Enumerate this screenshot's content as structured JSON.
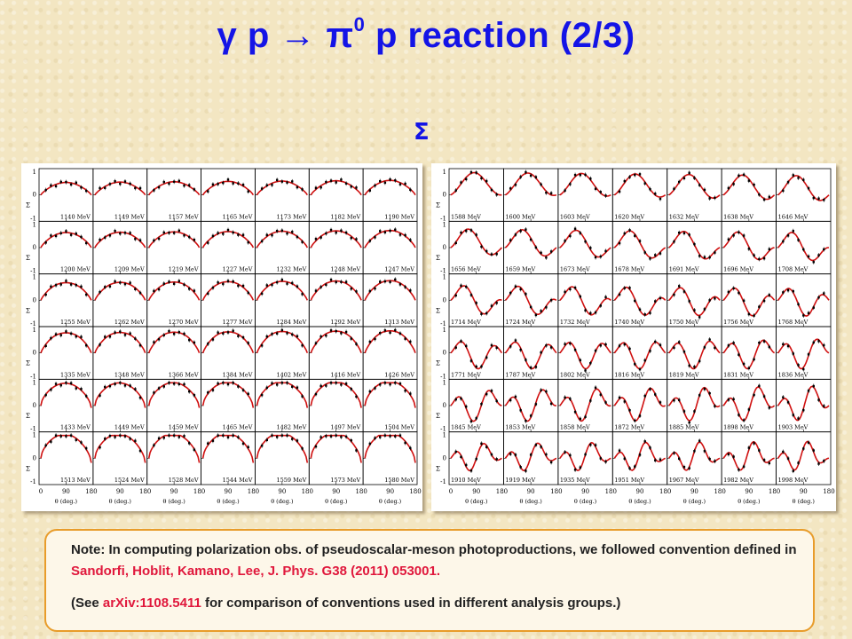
{
  "slide": {
    "title_main": "γ p  →  π",
    "title_sup": "0",
    "title_end": " p reaction (2/3)",
    "observable": "Σ"
  },
  "axis": {
    "x_ticks": [
      "0",
      "90",
      "180"
    ],
    "x_label": "θ (deg.)",
    "y_ticks": [
      "1",
      "0",
      "-1"
    ],
    "y_label": "Σ"
  },
  "left_grid": {
    "rows": 6,
    "cols": 7,
    "energies": [
      "1140 MeV",
      "1149 MeV",
      "1157 MeV",
      "1165 MeV",
      "1173 MeV",
      "1182 MeV",
      "1190 MeV",
      "1200 MeV",
      "1209 MeV",
      "1219 MeV",
      "1227 MeV",
      "1232 MeV",
      "1248 MeV",
      "1247 MeV",
      "1255 MeV",
      "1262 MeV",
      "1270 MeV",
      "1277 MeV",
      "1284 MeV",
      "1292 MeV",
      "1313 MeV",
      "1335 MeV",
      "1348 MeV",
      "1366 MeV",
      "1384 MeV",
      "1402 MeV",
      "1416 MeV",
      "1426 MeV",
      "1433 MeV",
      "1449 MeV",
      "1459 MeV",
      "1465 MeV",
      "1482 MeV",
      "1497 MeV",
      "1504 MeV",
      "1513 MeV",
      "1524 MeV",
      "1528 MeV",
      "1544 MeV",
      "1559 MeV",
      "1573 MeV",
      "1580 MeV"
    ]
  },
  "right_grid": {
    "rows": 6,
    "cols": 7,
    "energies": [
      "1588 MeV",
      "1600 MeV",
      "1603 MeV",
      "1620 MeV",
      "1632 MeV",
      "1638 MeV",
      "1646 MeV",
      "1656 MeV",
      "1659 MeV",
      "1673 MeV",
      "1678 MeV",
      "1691 MeV",
      "1696 MeV",
      "1708 MeV",
      "1714 MeV",
      "1724 MeV",
      "1732 MeV",
      "1740 MeV",
      "1750 MeV",
      "1756 MeV",
      "1768 MeV",
      "1771 MeV",
      "1787 MeV",
      "1802 MeV",
      "1816 MeV",
      "1819 MeV",
      "1831 MeV",
      "1836 MeV",
      "1845 MeV",
      "1853 MeV",
      "1858 MeV",
      "1872 MeV",
      "1885 MeV",
      "1898 MeV",
      "1903 MeV",
      "1910 MeV",
      "1919 MeV",
      "1935 MeV",
      "1951 MeV",
      "1967 MeV",
      "1982 MeV",
      "1998 MeV"
    ]
  },
  "note": {
    "line1_prefix": "Note: In computing polarization obs. of pseudoscalar-meson photoproductions, we followed convention defined in ",
    "line1_ref": "Sandorfi, Hoblit, Kamano, Lee, J. Phys. G38 (2011) 053001.",
    "line2_prefix": "(See ",
    "line2_ref": "arXiv:1108.5411",
    "line2_suffix": " for comparison of conventions used in different analysis groups.)"
  },
  "colors": {
    "title": "#1414e6",
    "curve": "#d01010",
    "points": "#000000",
    "reference": "#e0183c",
    "note_border": "#e89c2a"
  }
}
